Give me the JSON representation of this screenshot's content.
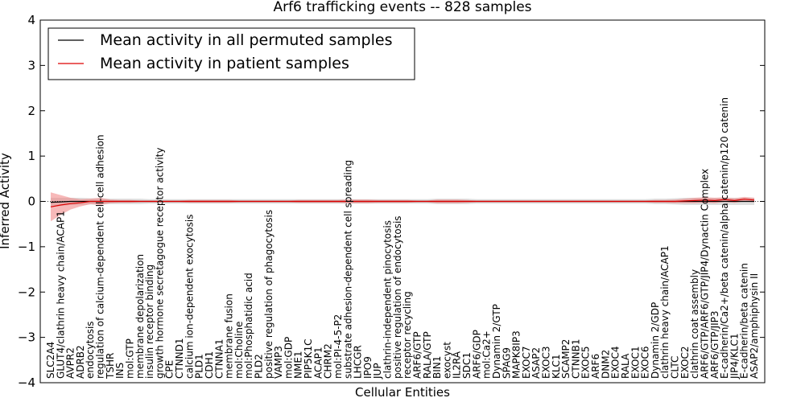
{
  "chart_data": {
    "type": "line",
    "title": "Arf6 trafficking events -- 828 samples",
    "xlabel": "Cellular Entities",
    "ylabel": "Inferred Activity",
    "ylim": [
      -4,
      4
    ],
    "yticks": [
      -4,
      -3,
      -2,
      -1,
      0,
      1,
      2,
      3,
      4
    ],
    "ytick_labels": [
      "−4",
      "−3",
      "−2",
      "−1",
      "0",
      "1",
      "2",
      "3",
      "4"
    ],
    "legend_location": "top-left",
    "categories": [
      "SLC2A4",
      "GLUT4/clathrin heavy chain/ACAP1",
      "AVPR2",
      "ADRB2",
      "endocytosis",
      "regulation of calcium-dependent cell-cell adhesion",
      "TSHR",
      "INS",
      "mol:GTP",
      "membrane depolarization",
      "insulin receptor binding",
      "growth hormone secretagogue receptor activity",
      "CPE",
      "CTNND1",
      "calcium ion-dependent exocytosis",
      "PLD1",
      "CDH1",
      "CTNNA1",
      "membrane fusion",
      "mol:Choline",
      "mol:Phosphatidic acid",
      "PLD2",
      "positive regulation of phagocytosis",
      "VAMP3",
      "mol:GDP",
      "NME1",
      "PIP5K1C",
      "ACAP1",
      "CHRM2",
      "mol:PI-4-5-P2",
      "substrate adhesion-dependent cell spreading",
      "LHCGR",
      "IPO9",
      "JUP",
      "clathrin-independent pinocytosis",
      "positive regulation of endocytosis",
      "receptor recycling",
      "ARF6/GTP",
      "RALA/GTP",
      "BIN1",
      "exocyst",
      "IL2RA",
      "SDC1",
      "ARF6/GDP",
      "mol:Ca2+",
      "Dynamin 2/GTP",
      "SPAG9",
      "MAPK8IP3",
      "EXOC7",
      "ASAP2",
      "EXOC3",
      "KLC1",
      "SCAMP2",
      "CTNNB1",
      "EXOC5",
      "ARF6",
      "DNM2",
      "EXOC4",
      "RALA",
      "EXOC1",
      "EXOC6",
      "Dynamin 2/GDP",
      "clathrin heavy chain/ACAP1",
      "CLTC",
      "EXOC2",
      "clathrin coat assembly",
      "ARF6/GTP/ARF6/GTP/JIP4/Dynactin Complex",
      "ARF6/GTP/JIP3",
      "E-cadherin/Ca2+/beta catenin/alpha catenin/p120 catenin",
      "JIP4/KLC1",
      "E-cadherin/beta catenin",
      "ASAP2/amphiphysin II"
    ],
    "series": [
      {
        "name": "Mean activity in all permuted samples",
        "color": "#000000",
        "values": [
          -0.02,
          -0.01,
          0,
          0,
          0,
          0,
          0,
          0,
          0,
          0,
          0,
          0,
          0,
          0,
          0,
          0,
          0,
          0,
          0,
          0,
          0,
          0,
          0,
          0,
          0,
          0,
          0,
          0,
          0,
          0,
          0,
          0,
          0,
          0,
          0,
          0,
          0,
          0,
          0,
          0,
          0,
          0,
          0,
          0,
          0,
          0,
          0,
          0,
          0,
          0,
          0,
          0,
          0,
          0,
          0,
          0,
          0,
          0,
          0,
          0,
          0,
          0,
          0,
          0,
          0,
          0,
          0,
          0,
          0,
          0,
          0,
          0
        ],
        "band": [
          0.1,
          0.09,
          0.08,
          0.08,
          0.07,
          0.07,
          0.06,
          0.06,
          0.06,
          0.06,
          0.05,
          0.05,
          0.05,
          0.05,
          0.05,
          0.05,
          0.05,
          0.05,
          0.05,
          0.05,
          0.05,
          0.05,
          0.05,
          0.05,
          0.05,
          0.05,
          0.05,
          0.05,
          0.05,
          0.05,
          0.05,
          0.05,
          0.05,
          0.05,
          0.05,
          0.05,
          0.05,
          0.05,
          0.05,
          0.06,
          0.06,
          0.06,
          0.06,
          0.05,
          0.05,
          0.05,
          0.05,
          0.05,
          0.05,
          0.05,
          0.05,
          0.05,
          0.05,
          0.05,
          0.05,
          0.05,
          0.05,
          0.05,
          0.05,
          0.05,
          0.05,
          0.06,
          0.06,
          0.07,
          0.08,
          0.08,
          0.08,
          0.08,
          0.08,
          0.08,
          0.08,
          0.08
        ]
      },
      {
        "name": "Mean activity in patient samples",
        "color": "#dd0000",
        "band_color": "#f08080",
        "values": [
          -0.12,
          -0.08,
          -0.05,
          -0.03,
          0,
          0,
          0,
          0,
          0,
          0,
          0,
          0,
          0,
          0,
          0,
          0,
          0,
          0,
          0,
          0,
          0,
          0,
          0,
          0,
          0,
          0,
          0,
          0,
          0,
          0,
          0,
          0,
          0,
          0,
          0,
          0,
          0,
          0,
          0,
          0,
          0,
          0,
          0,
          0,
          0,
          0,
          0,
          0,
          0,
          0,
          0,
          0,
          0,
          0,
          0,
          0,
          0,
          0,
          0,
          0,
          0,
          0,
          0,
          0,
          0.01,
          0.02,
          0.03,
          0.02,
          0.04,
          0.02,
          0.05,
          0.03
        ],
        "band": [
          0.32,
          0.22,
          0.13,
          0.08,
          0.06,
          0.08,
          0.04,
          0.03,
          0.03,
          0.02,
          0.02,
          0.02,
          0.02,
          0.02,
          0.03,
          0.03,
          0.03,
          0.03,
          0.03,
          0.02,
          0.02,
          0.02,
          0.02,
          0.02,
          0.02,
          0.03,
          0.03,
          0.03,
          0.03,
          0.03,
          0.04,
          0.04,
          0.04,
          0.03,
          0.03,
          0.03,
          0.03,
          0.02,
          0.02,
          0.04,
          0.04,
          0.04,
          0.03,
          0.02,
          0.02,
          0.02,
          0.02,
          0.02,
          0.02,
          0.02,
          0.02,
          0.02,
          0.02,
          0.02,
          0.02,
          0.02,
          0.02,
          0.02,
          0.02,
          0.02,
          0.02,
          0.03,
          0.03,
          0.04,
          0.05,
          0.06,
          0.06,
          0.06,
          0.05,
          0.05,
          0.05,
          0.05
        ]
      }
    ]
  }
}
